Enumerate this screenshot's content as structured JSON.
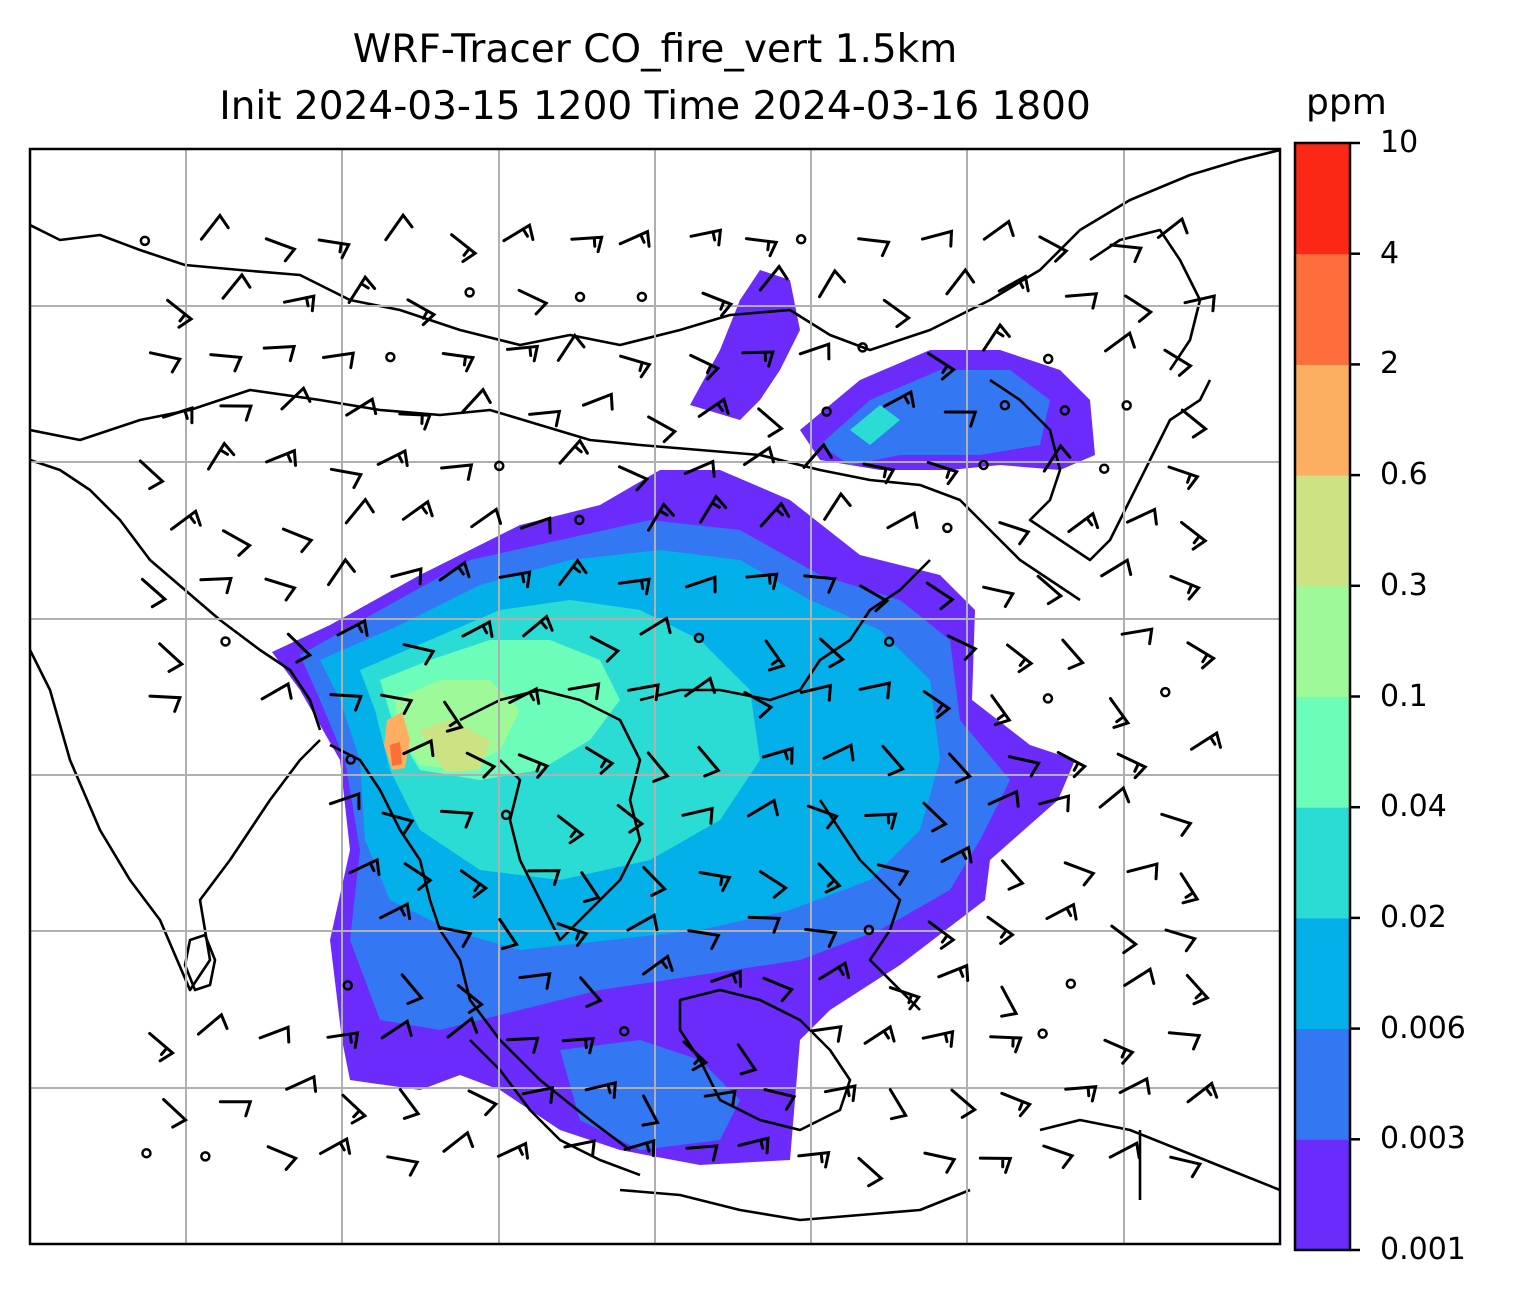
{
  "title": {
    "line1": "WRF-Tracer CO_fire_vert 1.5km",
    "line2": "Init 2024-03-15 1200 Time 2024-03-16 1800"
  },
  "colorbar": {
    "unit": "ppm",
    "levels": [
      "0.001",
      "0.003",
      "0.006",
      "0.02",
      "0.04",
      "0.1",
      "0.3",
      "0.6",
      "2",
      "4",
      "10"
    ],
    "colors": [
      "#6a2bfb",
      "#3377f3",
      "#04b0ea",
      "#2bdcd5",
      "#6cfdbb",
      "#9ef998",
      "#cde283",
      "#fdae61",
      "#fd6f3a",
      "#fd2716"
    ]
  },
  "map": {
    "variable": "CO_fire_vert",
    "gridlines": true,
    "wind_barbs": true
  }
}
